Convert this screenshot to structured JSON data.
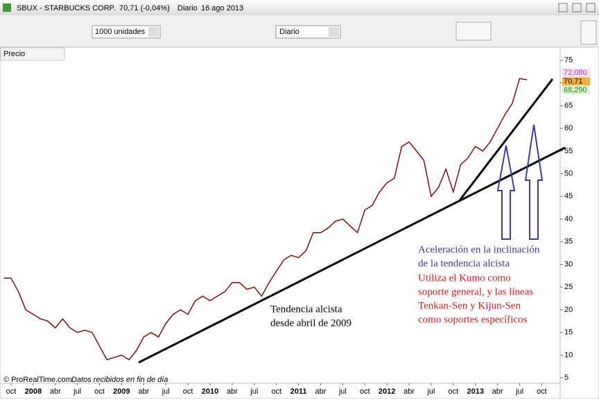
{
  "window": {
    "title": "SBUX - STARBUCKS CORP.",
    "quote": "70,71 (-0,04%)",
    "period": "Diario",
    "date": "16 ago 2013"
  },
  "toolbar": {
    "units": "1000 unidades",
    "period": "Diario"
  },
  "panel": {
    "label": "Precio"
  },
  "price_tags": [
    {
      "label": "72,080",
      "color": "#c040c0",
      "background": "#f6e0f6"
    },
    {
      "label": "70,71",
      "color": "#000000",
      "background": "#f5b23c"
    },
    {
      "label": "68,290",
      "color": "#2a8a2a",
      "background": "#d8f5d0"
    }
  ],
  "footer": {
    "copyright": "© ProRealTime.com",
    "note": "Datos recibidos en fin de día"
  },
  "chart_data": {
    "type": "line",
    "categories": [
      null,
      "oct",
      null,
      null,
      "2008",
      null,
      null,
      "abr",
      null,
      null,
      "jul",
      null,
      null,
      "oct",
      null,
      null,
      "2009",
      null,
      null,
      "abr",
      null,
      null,
      "jul",
      null,
      null,
      "oct",
      null,
      null,
      "2010",
      null,
      null,
      "abr",
      null,
      null,
      "jul",
      null,
      null,
      "oct",
      null,
      null,
      "2011",
      null,
      null,
      "abr",
      null,
      null,
      "jul",
      null,
      null,
      "oct",
      null,
      null,
      "2012",
      null,
      null,
      "abr",
      null,
      null,
      "jul",
      null,
      null,
      "oct",
      null,
      null,
      "2013",
      null,
      null,
      "abr",
      null,
      null,
      "jul",
      null,
      null,
      "oct",
      null,
      null
    ],
    "values": [
      27,
      27,
      24,
      20,
      19,
      18,
      17.5,
      16,
      18,
      16,
      15,
      15.5,
      15,
      12,
      9,
      9.5,
      10,
      9,
      11,
      14,
      15,
      14,
      17,
      19,
      20,
      19,
      22,
      23,
      22,
      23,
      24,
      26,
      26,
      24.5,
      25,
      23,
      26,
      28.5,
      31,
      32,
      31.5,
      33,
      37,
      37,
      38,
      39.5,
      40,
      38.5,
      37,
      42,
      43,
      46,
      48,
      49,
      56,
      57,
      55,
      53,
      45,
      47,
      51,
      46,
      52,
      53.5,
      56,
      55,
      57,
      60,
      63,
      65.5,
      71,
      70.71,
      null,
      null,
      null,
      null
    ],
    "color": "#7a1010",
    "ylim": [
      3.8,
      77.9
    ],
    "yticks": [
      5,
      10,
      15,
      20,
      25,
      30,
      35,
      40,
      45,
      50,
      55,
      60,
      65,
      70,
      75
    ],
    "annotations": [
      {
        "lines": [
          "Tendencia alcista",
          "desde abril de 2009"
        ],
        "color": "#000000"
      },
      {
        "lines": [
          "Aceleración en la inclinación",
          "de la tendencia alcista"
        ],
        "color": "#3a3aa0"
      },
      {
        "lines": [
          "Utiliza el Kumo como",
          "soporte general, y las líneas",
          "Tenkan-Sen y Kijun-Sen",
          "como soportes específicos"
        ],
        "color": "#d02020"
      }
    ]
  }
}
